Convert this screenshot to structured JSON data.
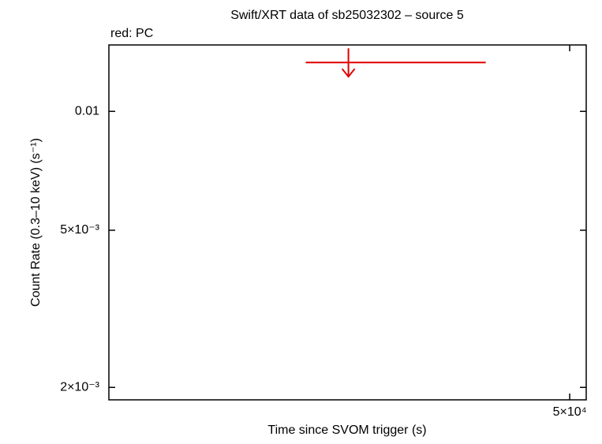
{
  "chart_data": {
    "type": "errorbar",
    "title": "Swift/XRT data of sb25032302 – source 5",
    "annotation": "red: PC",
    "x_label": "Time since SVOM trigger (s)",
    "y_label": "Count Rate (0.3–10 keV) (s⁻¹)",
    "x_log": true,
    "y_log": true,
    "xlim": [
      21580,
      51530
    ],
    "ylim": [
      0.00186,
      0.01473
    ],
    "xticks": [
      {
        "value": 50000,
        "label": "5×10⁴"
      }
    ],
    "yticks": [
      {
        "value": 0.002,
        "label": "2×10⁻³"
      },
      {
        "value": 0.005,
        "label": "5×10⁻³"
      },
      0.01
    ],
    "series": [
      {
        "color": "#e00000",
        "upper_limit": true,
        "x": [
          33400
        ],
        "x_start": [
          30900
        ],
        "x_end": [
          42900
        ],
        "values": [
          0.0133
        ]
      }
    ]
  }
}
